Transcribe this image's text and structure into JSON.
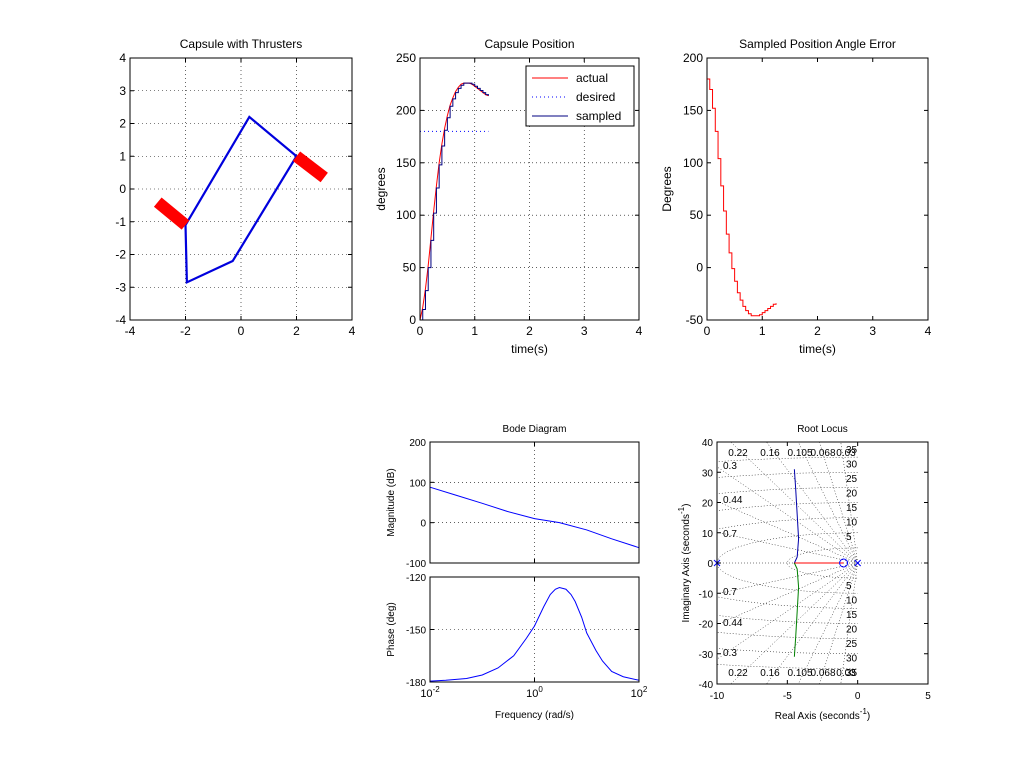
{
  "chart_data": [
    {
      "id": "capsule",
      "type": "line",
      "title": "Capsule with Thrusters",
      "xlabel": "",
      "ylabel": "",
      "xlim": [
        -4,
        4
      ],
      "ylim": [
        -4,
        4
      ],
      "xticks": [
        -4,
        -2,
        0,
        2,
        4
      ],
      "yticks": [
        -4,
        -3,
        -2,
        -1,
        0,
        1,
        2,
        3,
        4
      ],
      "xtick_labels": [
        "-4",
        "-2",
        "0",
        "2",
        "4"
      ],
      "ytick_labels": [
        "-4",
        "-3",
        "-2",
        "-1",
        "0",
        "1",
        "2",
        "3",
        "4"
      ],
      "grid": true,
      "colors": {
        "outline": "#0000dd",
        "thruster": "#ff0000"
      },
      "series": [
        {
          "role": "outline",
          "x": [
            -2.0,
            0.3,
            2.0,
            -0.3,
            -1.95,
            -2.0
          ],
          "y": [
            -1.1,
            2.2,
            1.0,
            -2.2,
            -2.85,
            -1.1
          ]
        },
        {
          "role": "thruster",
          "x": [
            -2.0,
            -3.0
          ],
          "y": [
            -1.1,
            -0.4
          ]
        },
        {
          "role": "thruster",
          "x": [
            2.0,
            3.0
          ],
          "y": [
            1.0,
            0.35
          ]
        }
      ]
    },
    {
      "id": "position",
      "type": "line",
      "title": "Capsule Position",
      "xlabel": "time(s)",
      "ylabel": "degrees",
      "xlim": [
        0,
        4
      ],
      "ylim": [
        0,
        250
      ],
      "xticks": [
        0,
        1,
        2,
        3,
        4
      ],
      "yticks": [
        0,
        50,
        100,
        150,
        200,
        250
      ],
      "xtick_labels": [
        "0",
        "1",
        "2",
        "3",
        "4"
      ],
      "ytick_labels": [
        "0",
        "50",
        "100",
        "150",
        "200",
        "250"
      ],
      "grid": true,
      "legend": {
        "placement": "top-right",
        "entries": [
          "actual",
          "desired",
          "sampled"
        ]
      },
      "series": [
        {
          "name": "actual",
          "color": "#ff0000",
          "style": "solid",
          "x": [
            0,
            0.05,
            0.1,
            0.15,
            0.2,
            0.25,
            0.3,
            0.35,
            0.4,
            0.45,
            0.5,
            0.55,
            0.6,
            0.65,
            0.7,
            0.75,
            0.8,
            0.85,
            0.9,
            0.95,
            1.0,
            1.05,
            1.1,
            1.15,
            1.2,
            1.25
          ],
          "y": [
            0,
            12,
            30,
            52,
            78,
            104,
            128,
            150,
            168,
            183,
            195,
            205,
            212,
            218,
            222,
            225,
            226,
            226,
            226,
            225,
            223,
            221,
            219,
            217,
            215,
            214
          ]
        },
        {
          "name": "desired",
          "color": "#0000ff",
          "style": "dotted",
          "x": [
            0.0,
            1.25
          ],
          "y": [
            180,
            180
          ]
        },
        {
          "name": "sampled",
          "color": "#000080",
          "style": "stairs",
          "x": [
            0,
            0.05,
            0.1,
            0.15,
            0.2,
            0.25,
            0.3,
            0.35,
            0.4,
            0.45,
            0.5,
            0.55,
            0.6,
            0.65,
            0.7,
            0.75,
            0.8,
            0.85,
            0.9,
            0.95,
            1.0,
            1.05,
            1.1,
            1.15,
            1.2,
            1.25
          ],
          "y": [
            0,
            10,
            28,
            50,
            76,
            102,
            126,
            148,
            166,
            181,
            193,
            204,
            211,
            217,
            221,
            224,
            226,
            226,
            226,
            225,
            223,
            221,
            219,
            217,
            215,
            214
          ]
        }
      ]
    },
    {
      "id": "error",
      "type": "line",
      "title": "Sampled Position Angle Error",
      "xlabel": "time(s)",
      "ylabel": "Degrees",
      "xlim": [
        0,
        4
      ],
      "ylim": [
        -50,
        200
      ],
      "xticks": [
        0,
        1,
        2,
        3,
        4
      ],
      "yticks": [
        -50,
        0,
        50,
        100,
        150,
        200
      ],
      "xtick_labels": [
        "0",
        "1",
        "2",
        "3",
        "4"
      ],
      "ytick_labels": [
        "-50",
        "0",
        "50",
        "100",
        "150",
        "200"
      ],
      "grid": false,
      "series": [
        {
          "color": "#ff0000",
          "style": "stairs",
          "x": [
            0,
            0.05,
            0.1,
            0.15,
            0.2,
            0.25,
            0.3,
            0.35,
            0.4,
            0.45,
            0.5,
            0.55,
            0.6,
            0.65,
            0.7,
            0.75,
            0.8,
            0.85,
            0.9,
            0.95,
            1.0,
            1.05,
            1.1,
            1.15,
            1.2,
            1.25
          ],
          "y": [
            180,
            170,
            152,
            130,
            104,
            78,
            54,
            32,
            14,
            -1,
            -13,
            -24,
            -31,
            -37,
            -41,
            -44,
            -46,
            -46,
            -46,
            -45,
            -43,
            -41,
            -39,
            -37,
            -35,
            -34
          ]
        }
      ]
    },
    {
      "id": "bode-mag",
      "type": "line",
      "title": "Bode Diagram",
      "xlabel": "",
      "ylabel": "Magnitude (dB)",
      "xscale": "log",
      "xlim": [
        0.01,
        100
      ],
      "ylim": [
        -100,
        200
      ],
      "xticks": [
        0.01,
        1,
        100
      ],
      "yticks": [
        -100,
        0,
        100,
        200
      ],
      "ytick_labels": [
        "-100",
        "0",
        "100",
        "200"
      ],
      "grid": true,
      "series": [
        {
          "color": "#0000ff",
          "x": [
            0.01,
            0.03,
            0.1,
            0.3,
            1,
            3,
            10,
            30,
            100
          ],
          "y": [
            88,
            69,
            48,
            28,
            10,
            0,
            -18,
            -40,
            -62
          ]
        }
      ]
    },
    {
      "id": "bode-phase",
      "type": "line",
      "title": "",
      "xlabel": "Frequency  (rad/s)",
      "ylabel": "Phase (deg)",
      "xscale": "log",
      "xlim": [
        0.01,
        100
      ],
      "ylim": [
        -180,
        -120
      ],
      "xticks": [
        0.01,
        1,
        100
      ],
      "xtick_labels": [
        {
          "base": "10",
          "exp": "-2"
        },
        {
          "base": "10",
          "exp": "0"
        },
        {
          "base": "10",
          "exp": "2"
        }
      ],
      "yticks": [
        -180,
        -150,
        -120
      ],
      "ytick_labels": [
        "-180",
        "-150",
        "-120"
      ],
      "grid": true,
      "series": [
        {
          "color": "#0000ff",
          "x": [
            0.01,
            0.02,
            0.05,
            0.1,
            0.2,
            0.4,
            0.7,
            1,
            1.5,
            2,
            2.5,
            3,
            4,
            5,
            6,
            8,
            10,
            15,
            20,
            30,
            50,
            100
          ],
          "y": [
            -179.5,
            -179,
            -178,
            -176,
            -172,
            -165,
            -155,
            -148,
            -137,
            -130,
            -127,
            -126,
            -127,
            -130,
            -134,
            -143,
            -152,
            -162,
            -168,
            -174,
            -177,
            -179
          ]
        }
      ]
    },
    {
      "id": "root-locus",
      "type": "line",
      "title": "Root Locus",
      "xlabel": {
        "text": "Real Axis (seconds",
        "sup": "-1",
        "end": ")"
      },
      "ylabel": {
        "text": "Imaginary Axis (seconds",
        "sup": "-1",
        "end": ")"
      },
      "xlim": [
        -10,
        5
      ],
      "ylim": [
        -40,
        40
      ],
      "xticks": [
        -10,
        -5,
        0,
        5
      ],
      "yticks": [
        -40,
        -30,
        -20,
        -10,
        0,
        10,
        20,
        30,
        40
      ],
      "xtick_labels": [
        "-10",
        "-5",
        "0",
        "5"
      ],
      "ytick_labels": [
        "-40",
        "-30",
        "-20",
        "-10",
        "0",
        "10",
        "20",
        "30",
        "40"
      ],
      "grid": "s-plane",
      "damping_labels": [
        "0.22",
        "0.16",
        "0.105",
        "0.068",
        "0.03"
      ],
      "damping_side_labels": [
        "0.3",
        "0.44",
        "0.7"
      ],
      "freq_labels": [
        "35",
        "30",
        "25",
        "20",
        "15",
        "10",
        "5"
      ],
      "damping_values": [
        0.03,
        0.068,
        0.105,
        0.16,
        0.22,
        0.3,
        0.44,
        0.7
      ],
      "freq_values": [
        5,
        10,
        15,
        20,
        25,
        30,
        35
      ],
      "poles": [
        [
          -10,
          0
        ],
        [
          0,
          0
        ]
      ],
      "zeros": [
        [
          -1,
          0
        ]
      ],
      "series": [
        {
          "color": "#0000aa",
          "x": [
            -4.5,
            -4.3,
            -4.2,
            -4.3,
            -4.4,
            -4.5
          ],
          "y": [
            0,
            2,
            8,
            16,
            24,
            31
          ]
        },
        {
          "color": "#008000",
          "x": [
            -4.5,
            -4.3,
            -4.2,
            -4.3,
            -4.4,
            -4.5
          ],
          "y": [
            0,
            -2,
            -8,
            -16,
            -24,
            -31
          ]
        },
        {
          "color": "#ff0000",
          "x": [
            -4.5,
            -1
          ],
          "y": [
            0,
            0
          ]
        },
        {
          "color": "#008000",
          "x": [
            -4.5,
            -4.5
          ],
          "y": [
            -0.3,
            0
          ]
        }
      ]
    }
  ]
}
